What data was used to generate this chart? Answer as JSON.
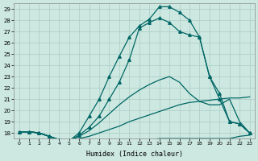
{
  "xlabel": "Humidex (Indice chaleur)",
  "background_color": "#cce8e0",
  "grid_color": "#aaccc4",
  "line_color": "#006666",
  "xlim": [
    -0.5,
    23.5
  ],
  "ylim": [
    17.5,
    29.5
  ],
  "xtick_labels": [
    "0",
    "1",
    "2",
    "3",
    "4",
    "5",
    "6",
    "7",
    "8",
    "9",
    "10",
    "11",
    "12",
    "13",
    "14",
    "15",
    "16",
    "17",
    "18",
    "19",
    "20",
    "21",
    "22",
    "23"
  ],
  "ytick_values": [
    18,
    19,
    20,
    21,
    22,
    23,
    24,
    25,
    26,
    27,
    28,
    29
  ],
  "series_flat": {
    "x": [
      0,
      1,
      2,
      3,
      4,
      5,
      6,
      7,
      8,
      9,
      10,
      11,
      12,
      13,
      14,
      15,
      16,
      17,
      18,
      19,
      20,
      21,
      22,
      23
    ],
    "y": [
      18.1,
      18.1,
      18.0,
      17.7,
      17.4,
      17.3,
      17.3,
      17.3,
      17.3,
      17.3,
      17.3,
      17.4,
      17.4,
      17.4,
      17.5,
      17.5,
      17.5,
      17.5,
      17.5,
      17.5,
      17.5,
      17.5,
      17.7,
      17.8
    ]
  },
  "series_diag1": {
    "x": [
      0,
      1,
      2,
      3,
      4,
      5,
      6,
      7,
      8,
      9,
      10,
      11,
      12,
      13,
      14,
      15,
      16,
      17,
      18,
      19,
      20,
      21,
      22,
      23
    ],
    "y": [
      18.1,
      18.1,
      18.0,
      17.7,
      17.4,
      17.3,
      17.5,
      17.7,
      18.0,
      18.3,
      18.6,
      19.0,
      19.3,
      19.6,
      19.9,
      20.2,
      20.5,
      20.7,
      20.8,
      20.9,
      21.0,
      21.1,
      21.1,
      21.2
    ]
  },
  "series_diag2": {
    "x": [
      0,
      1,
      2,
      3,
      4,
      5,
      6,
      7,
      8,
      9,
      10,
      11,
      12,
      13,
      14,
      15,
      16,
      17,
      18,
      19,
      20,
      21,
      22,
      23
    ],
    "y": [
      18.1,
      18.1,
      18.0,
      17.7,
      17.4,
      17.3,
      17.7,
      18.2,
      18.9,
      19.7,
      20.5,
      21.2,
      21.8,
      22.3,
      22.7,
      23.0,
      22.5,
      21.5,
      20.8,
      20.5,
      20.5,
      21.0,
      19.0,
      18.0
    ]
  },
  "series_main1": {
    "x": [
      0,
      1,
      2,
      3,
      4,
      5,
      6,
      7,
      8,
      9,
      10,
      11,
      12,
      13,
      14,
      15,
      16,
      17,
      18,
      19,
      20,
      21,
      22,
      23
    ],
    "y": [
      18.1,
      18.1,
      18.0,
      17.7,
      17.4,
      17.3,
      18.0,
      19.5,
      21.0,
      23.0,
      24.8,
      26.5,
      27.5,
      28.1,
      29.2,
      29.2,
      28.7,
      28.0,
      26.5,
      23.0,
      21.5,
      19.0,
      18.8,
      18.0
    ],
    "markers": true
  },
  "series_main2": {
    "x": [
      0,
      1,
      2,
      3,
      4,
      5,
      6,
      7,
      8,
      9,
      10,
      11,
      12,
      13,
      14,
      15,
      16,
      17,
      18,
      19,
      20,
      21,
      22,
      23
    ],
    "y": [
      18.1,
      18.1,
      18.0,
      17.7,
      17.4,
      17.3,
      17.8,
      18.5,
      19.5,
      21.0,
      22.5,
      24.5,
      27.3,
      27.8,
      28.2,
      27.8,
      27.0,
      26.7,
      26.5,
      23.0,
      21.0,
      19.0,
      18.8,
      18.0
    ],
    "markers": true
  }
}
